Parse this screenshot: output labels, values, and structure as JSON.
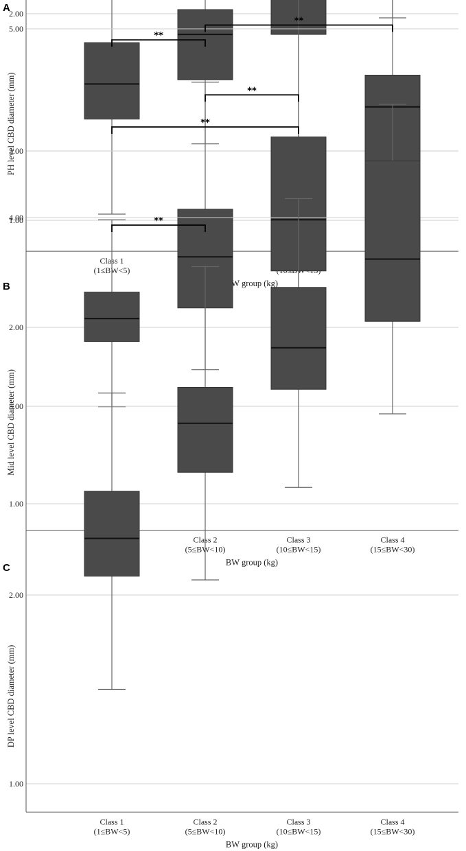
{
  "chart_data": [
    {
      "type": "box",
      "panel": "A",
      "ylabel": "PH level CBD diameter (mm)",
      "xlabel": "BW group (kg)",
      "ylim": [
        0.85,
        4.15
      ],
      "yticks": [
        1.0,
        2.0,
        3.0,
        4.0
      ],
      "ytick_labels": [
        "1.00",
        "2.00",
        "3.00",
        "4.00"
      ],
      "grid": true,
      "categories": [
        {
          "name": "Class 1",
          "range": "(1≤BW<5)"
        },
        {
          "name": "Class 2",
          "range": "(5≤BW<10)"
        },
        {
          "name": "Class 3",
          "range": "(10≤BW<15)"
        },
        {
          "name": "Class 4",
          "range": "(15≤BW<30)"
        }
      ],
      "boxes": [
        {
          "min": 1.03,
          "q1": 1.49,
          "median": 1.66,
          "q3": 1.86,
          "max": 2.32
        },
        {
          "min": 1.37,
          "q1": 1.68,
          "median": 1.9,
          "q3": 2.02,
          "max": 2.51
        },
        {
          "min": 1.4,
          "q1": 1.9,
          "median": 2.16,
          "q3": 2.47,
          "max": 2.94
        },
        {
          "min": 1.98,
          "q1": 2.4,
          "median": 2.81,
          "q3": 3.01,
          "max": 3.44
        }
      ],
      "brackets": [
        {
          "from": 0,
          "to": 3,
          "label": "**",
          "y": 4.03
        },
        {
          "from": 1,
          "to": 3,
          "label": "**",
          "y": 3.85
        },
        {
          "from": 2,
          "to": 3,
          "label": "**",
          "y": 3.67
        },
        {
          "from": 1,
          "to": 2,
          "label": "*",
          "y": 3.36
        },
        {
          "from": 0,
          "to": 2,
          "label": "**",
          "y": 3.03
        },
        {
          "from": 0,
          "to": 1,
          "label": "**",
          "y": 2.63
        }
      ]
    },
    {
      "type": "box",
      "panel": "B",
      "ylabel": "Mid level CBD diameter (mm)",
      "xlabel": "BW group (kg)",
      "ylim": [
        0.85,
        4.7
      ],
      "yticks": [
        1.0,
        2.0,
        3.0,
        4.0
      ],
      "ytick_labels": [
        "1.00",
        "2.00",
        "3.00",
        "4.00"
      ],
      "grid": true,
      "categories": [
        {
          "name": "Class 1",
          "range": "(1≤BW<5)"
        },
        {
          "name": "Class 2",
          "range": "(5≤BW<10)"
        },
        {
          "name": "Class 3",
          "range": "(10≤BW<15)"
        },
        {
          "name": "Class 4",
          "range": "(15≤BW<30)"
        }
      ],
      "boxes": [
        {
          "min": 1.55,
          "q1": 1.92,
          "median": 2.05,
          "q3": 2.2,
          "max": 2.61
        },
        {
          "min": 1.76,
          "q1": 2.11,
          "median": 2.4,
          "q3": 2.67,
          "max": 3.39
        },
        {
          "min": 1.96,
          "q1": 2.32,
          "median": 2.61,
          "q3": 3.08,
          "max": 3.9
        },
        {
          "min": 2.13,
          "q1": 2.9,
          "median": 3.25,
          "q3": 3.43,
          "max": 4.17
        }
      ],
      "brackets": [
        {
          "from": 0,
          "to": 3,
          "label": "**",
          "y": 4.68
        },
        {
          "from": 1,
          "to": 3,
          "label": "**",
          "y": 4.5
        },
        {
          "from": 2,
          "to": 3,
          "label": "*",
          "y": 4.32
        },
        {
          "from": 1,
          "to": 2,
          "label": "*",
          "y": 4.19
        },
        {
          "from": 0,
          "to": 2,
          "label": "**",
          "y": 4.0
        },
        {
          "from": 0,
          "to": 1,
          "label": "**",
          "y": 3.63
        }
      ]
    },
    {
      "type": "box",
      "panel": "C",
      "ylabel": "DP level CBD diameter (mm)",
      "xlabel": "BW group (kg)",
      "ylim": [
        0.85,
        5.25
      ],
      "yticks": [
        1.0,
        2.0,
        3.0,
        4.0,
        5.0
      ],
      "ytick_labels": [
        "1.00",
        "2.00",
        "3.00",
        "4.00",
        "5.00"
      ],
      "grid": true,
      "categories": [
        {
          "name": "Class 1",
          "range": "(1≤BW<5)"
        },
        {
          "name": "Class 2",
          "range": "(5≤BW<10)"
        },
        {
          "name": "Class 3",
          "range": "(10≤BW<15)"
        },
        {
          "name": "Class 4",
          "range": "(15≤BW<30)"
        }
      ],
      "boxes": [
        {
          "min": 1.5,
          "q1": 2.1,
          "median": 2.3,
          "q3": 2.55,
          "max": 3.07
        },
        {
          "min": 2.08,
          "q1": 2.65,
          "median": 2.91,
          "q3": 3.1,
          "max": 3.74
        },
        {
          "min": 2.57,
          "q1": 3.09,
          "median": 3.31,
          "q3": 3.63,
          "max": 4.1
        },
        {
          "min": 2.96,
          "q1": 3.45,
          "median": 3.78,
          "q3": 4.3,
          "max": 4.6
        }
      ],
      "brackets": [
        {
          "from": 0,
          "to": 3,
          "label": "**",
          "y": 5.4
        },
        {
          "from": 2,
          "to": 3,
          "label": "*",
          "y": 5.2
        },
        {
          "from": 1,
          "to": 3,
          "label": "**",
          "y": 5.02
        },
        {
          "from": 1,
          "to": 2,
          "label": "**",
          "y": 4.65
        },
        {
          "from": 0,
          "to": 2,
          "label": "**",
          "y": 4.48
        },
        {
          "from": 0,
          "to": 1,
          "label": "**",
          "y": 3.96
        }
      ]
    }
  ]
}
